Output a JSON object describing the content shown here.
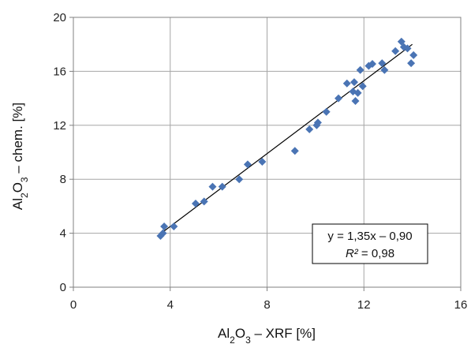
{
  "chart_data": {
    "type": "scatter",
    "xlabel": "Al2O3 – XRF [%]",
    "ylabel": "Al2O3 – chem. [%]",
    "xlim": [
      0,
      16
    ],
    "ylim": [
      0,
      20
    ],
    "xticks": [
      0,
      4,
      8,
      12,
      16
    ],
    "yticks": [
      0,
      4,
      8,
      12,
      16,
      20
    ],
    "xtick_labels": [
      "0",
      "4",
      "8",
      "12",
      "16"
    ],
    "ytick_labels": [
      "0",
      "4",
      "8",
      "12",
      "16",
      "20"
    ],
    "grid": true,
    "marker_color": "#4a74b4",
    "trendline": {
      "slope": 1.35,
      "intercept": -0.9,
      "x_range": [
        3.6,
        14.0
      ]
    },
    "annotation": {
      "equation": "y = 1,35x – 0,90",
      "r2_label": "R²",
      "r2_value": " = 0,98"
    },
    "points": [
      {
        "x": 3.6,
        "y": 3.8
      },
      {
        "x": 3.7,
        "y": 4.0
      },
      {
        "x": 3.75,
        "y": 4.5
      },
      {
        "x": 4.15,
        "y": 4.5
      },
      {
        "x": 5.05,
        "y": 6.2
      },
      {
        "x": 5.4,
        "y": 6.35
      },
      {
        "x": 5.75,
        "y": 7.45
      },
      {
        "x": 6.15,
        "y": 7.45
      },
      {
        "x": 6.85,
        "y": 8.0
      },
      {
        "x": 7.2,
        "y": 9.1
      },
      {
        "x": 7.8,
        "y": 9.3
      },
      {
        "x": 9.15,
        "y": 10.1
      },
      {
        "x": 9.75,
        "y": 11.7
      },
      {
        "x": 10.05,
        "y": 12.0
      },
      {
        "x": 10.1,
        "y": 12.2
      },
      {
        "x": 10.45,
        "y": 13.0
      },
      {
        "x": 10.95,
        "y": 14.0
      },
      {
        "x": 11.3,
        "y": 15.1
      },
      {
        "x": 11.55,
        "y": 14.5
      },
      {
        "x": 11.6,
        "y": 15.2
      },
      {
        "x": 11.65,
        "y": 13.8
      },
      {
        "x": 11.75,
        "y": 14.4
      },
      {
        "x": 11.85,
        "y": 16.1
      },
      {
        "x": 11.95,
        "y": 14.9
      },
      {
        "x": 12.2,
        "y": 16.4
      },
      {
        "x": 12.35,
        "y": 16.55
      },
      {
        "x": 12.75,
        "y": 16.6
      },
      {
        "x": 12.85,
        "y": 16.1
      },
      {
        "x": 13.3,
        "y": 17.5
      },
      {
        "x": 13.55,
        "y": 18.2
      },
      {
        "x": 13.65,
        "y": 17.8
      },
      {
        "x": 13.8,
        "y": 17.7
      },
      {
        "x": 13.95,
        "y": 16.6
      },
      {
        "x": 14.05,
        "y": 17.2
      }
    ]
  }
}
